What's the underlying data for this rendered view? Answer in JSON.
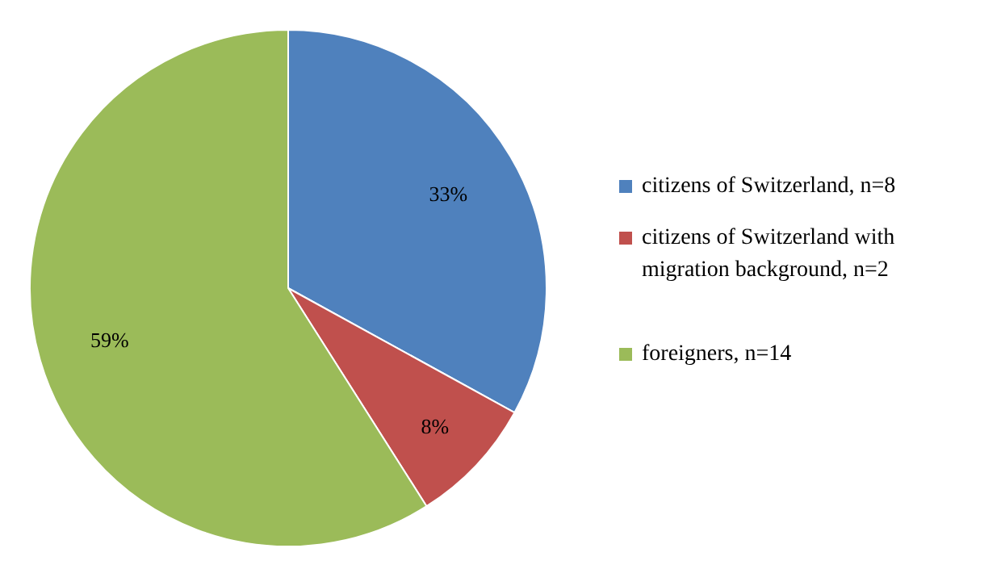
{
  "chart_data": {
    "type": "pie",
    "categories": [
      "citizens of Switzerland, n=8",
      "citizens of Switzerland with migration background, n=2",
      "foreigners, n=14"
    ],
    "values": [
      33,
      8,
      59
    ],
    "colors": [
      "#4f81bd",
      "#c0504d",
      "#9bbb59"
    ],
    "value_labels": [
      "33%",
      "8%",
      "59%"
    ],
    "legend": "right"
  }
}
